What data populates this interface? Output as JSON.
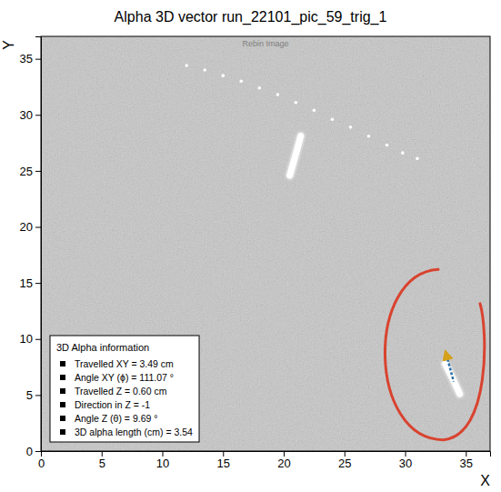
{
  "chart_data": {
    "type": "image",
    "title": "Alpha 3D vector run_22101_pic_59_trig_1",
    "subtitle": "Rebin Image",
    "x_label": "X",
    "y_label": "Y",
    "xlim": [
      0,
      37
    ],
    "ylim": [
      0,
      37
    ],
    "xticks": [
      0,
      5,
      10,
      15,
      20,
      25,
      30,
      35
    ],
    "yticks": [
      0,
      5,
      10,
      15,
      20,
      25,
      30,
      35
    ],
    "legend": "lower left",
    "legend_box": {
      "title": "3D Alpha information",
      "entries": [
        "Travelled XY = 3.49 cm",
        "Angle XY (ϕ) = 111.07 °",
        "Travelled Z = 0.60 cm",
        "Direction in Z = -1",
        "Angle Z (θ) = 9.69 °",
        "3D alpha length (cm) = 3.54"
      ]
    },
    "series": [
      {
        "type": "scatter",
        "marker": "circle",
        "color": "#ffffff",
        "x": [
          12,
          13.5,
          15,
          16.5,
          18,
          19.5,
          21,
          22.5,
          24,
          25.5,
          27,
          28.5,
          29.8,
          31
        ],
        "values": [
          34.4,
          34.0,
          33.5,
          33.0,
          32.4,
          31.8,
          31.1,
          30.4,
          29.6,
          28.9,
          28.1,
          27.3,
          26.6,
          26.1
        ]
      },
      {
        "type": "line",
        "line_style": "solid",
        "color": "#ffffff",
        "x": [
          20.5,
          21.0,
          21.4
        ],
        "values": [
          24.6,
          26.5,
          28.1
        ]
      },
      {
        "type": "line",
        "line_style": "solid",
        "color": "#ffffff",
        "x": [
          33.3,
          33.9,
          34.5
        ],
        "values": [
          7.8,
          6.5,
          5.1
        ]
      },
      {
        "type": "line",
        "line_style": "dashed",
        "marker": "arrow",
        "color": "#2a6fa8",
        "x": [
          33.4,
          34.0
        ],
        "values": [
          8.6,
          6.2
        ]
      }
    ]
  }
}
